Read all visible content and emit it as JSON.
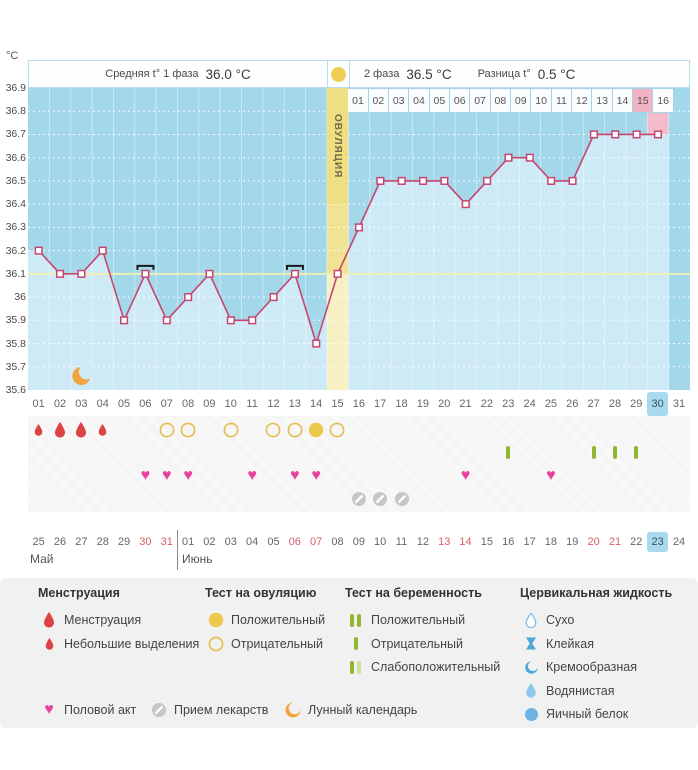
{
  "header": {
    "unit": "°C",
    "phase1_label": "Средняя t° 1 фаза",
    "phase1_value": "36.0 °C",
    "phase2_label": "2 фаза",
    "phase2_value": "36.5 °C",
    "diff_label": "Разница t°",
    "diff_value": "0.5 °C",
    "ovulation_label": "ОВУЛЯЦИЯ"
  },
  "chart_data": {
    "type": "line",
    "title": "Basal body temperature cycle chart",
    "ylabel": "°C",
    "ylim": [
      35.6,
      36.9
    ],
    "yticks": [
      "36.9",
      "36.8",
      "36.7",
      "36.6",
      "36.5",
      "36.4",
      "36.3",
      "36.2",
      "36.1",
      "36",
      "35.9",
      "35.8",
      "35.7",
      "35.6"
    ],
    "cycle_days": [
      "01",
      "02",
      "03",
      "04",
      "05",
      "06",
      "07",
      "08",
      "09",
      "10",
      "11",
      "12",
      "13",
      "14",
      "15",
      "16",
      "17",
      "18",
      "19",
      "20",
      "21",
      "22",
      "23",
      "24",
      "25",
      "26",
      "27",
      "28",
      "29",
      "30",
      "31"
    ],
    "phase2_days": [
      "01",
      "02",
      "03",
      "04",
      "05",
      "06",
      "07",
      "08",
      "09",
      "10",
      "11",
      "12",
      "13",
      "14",
      "15",
      "16"
    ],
    "temperatures": [
      36.2,
      36.1,
      36.1,
      36.2,
      35.9,
      36.1,
      35.9,
      36.0,
      36.1,
      35.9,
      35.9,
      36.0,
      36.1,
      35.8,
      36.1,
      36.3,
      36.5,
      36.5,
      36.5,
      36.5,
      36.4,
      36.5,
      36.6,
      36.6,
      36.5,
      36.5,
      36.7,
      36.7,
      36.7,
      36.7
    ],
    "coverline": 36.1,
    "ovulation_day": 15,
    "today_cycle_day": 30,
    "disturbance_days": [
      6,
      13
    ],
    "moon_day": 3,
    "grid": "dotted-horizontal"
  },
  "rows": {
    "menstruation_big": [
      2,
      3
    ],
    "menstruation_small": [
      1,
      4
    ],
    "ovulation_test_negative": [
      7,
      8,
      10,
      12,
      13,
      15
    ],
    "ovulation_test_positive": [
      14
    ],
    "pregnancy_test_negative": [
      23,
      27,
      28,
      29
    ],
    "intercourse": [
      6,
      7,
      8,
      11,
      13,
      14,
      21,
      25
    ],
    "medication": [
      16,
      17,
      18
    ]
  },
  "calendar": {
    "dates": [
      "25",
      "26",
      "27",
      "28",
      "29",
      "30",
      "31",
      "01",
      "02",
      "03",
      "04",
      "05",
      "06",
      "07",
      "08",
      "09",
      "10",
      "11",
      "12",
      "13",
      "14",
      "15",
      "16",
      "17",
      "18",
      "19",
      "20",
      "21",
      "22",
      "23",
      "24"
    ],
    "red_indices": [
      5,
      6,
      12,
      13,
      19,
      20,
      26,
      27
    ],
    "today_index": 29,
    "months": [
      {
        "label": "Май",
        "span": 7
      },
      {
        "label": "Июнь",
        "span": 24
      }
    ]
  },
  "legend": {
    "columns": [
      {
        "title": "Менструация",
        "items": [
          {
            "icon": "drop-big",
            "label": "Менструация"
          },
          {
            "icon": "drop-small",
            "label": "Небольшие выделения"
          }
        ]
      },
      {
        "title": "Тест на овуляцию",
        "items": [
          {
            "icon": "circle-filled",
            "label": "Положительный"
          },
          {
            "icon": "circle-outline",
            "label": "Отрицательный"
          }
        ]
      },
      {
        "title": "Тест на беременность",
        "items": [
          {
            "icon": "bars-two",
            "label": "Положительный"
          },
          {
            "icon": "bar-one",
            "label": "Отрицательный"
          },
          {
            "icon": "bar-faded",
            "label": "Слабоположительный"
          }
        ]
      },
      {
        "title": "Цервикальная жидкость",
        "items": [
          {
            "icon": "drop-outline-blue",
            "label": "Сухо"
          },
          {
            "icon": "sticky",
            "label": "Клейкая"
          },
          {
            "icon": "creamy",
            "label": "Кремообразная"
          },
          {
            "icon": "drop-blue",
            "label": "Водянистая"
          },
          {
            "icon": "circle-blue",
            "label": "Яичный белок"
          }
        ]
      }
    ],
    "footer": [
      {
        "icon": "heart",
        "label": "Половой акт"
      },
      {
        "icon": "pill",
        "label": "Прием лекарств"
      },
      {
        "icon": "moon",
        "label": "Лунный календарь"
      }
    ]
  },
  "colors": {
    "line": "#c5476f",
    "plot_bg": "#a3d7ea",
    "plot_fill": "#cfeaf7",
    "ovulation_col": "#f1e394",
    "ovulation_col_light": "#f7f0c2",
    "pink_col": "#f4bccb",
    "coverline": "#eef0b6",
    "highlight_blue": "#a9d9ee",
    "red_date": "#d95f66",
    "heart": "#e7439e",
    "drop": "#dc4343",
    "test_yellow": "#ecc84a",
    "test_yellow_stroke": "#e4bd4a",
    "green": "#93b631",
    "green_faded": "#cfe0a0",
    "pill_gray": "#c6c6c6",
    "moon_orange": "#f0a43e",
    "cf_blue": "#4da7dc",
    "cf_light_blue": "#8ec8ec",
    "cf_mid_blue": "#6fb3e3"
  }
}
